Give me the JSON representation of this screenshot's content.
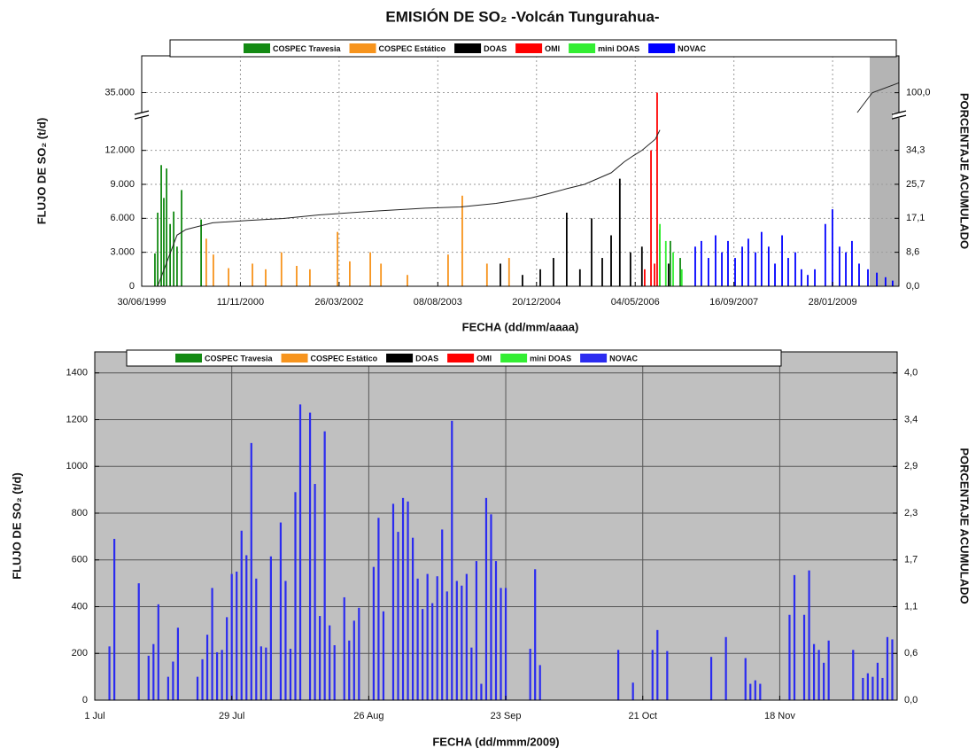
{
  "chart_data": [
    {
      "type": "bar",
      "title": "EMISIÓN DE SO₂  -Volcán Tungurahua-",
      "xlabel": "FECHA (dd/mm/aaaa)",
      "ylabel": "FLUJO DE SO₂ (t/d)",
      "y2label": "PORCENTAJE ACUMULADO",
      "xlim": [
        "1999-06-30",
        "2009-12-30"
      ],
      "xticks": [
        {
          "value": "1999-06-30",
          "label": "30/06/1999"
        },
        {
          "value": "2000-11-11",
          "label": "11/11/2000"
        },
        {
          "value": "2002-03-26",
          "label": "26/03/2002"
        },
        {
          "value": "2003-08-08",
          "label": "08/08/2003"
        },
        {
          "value": "2004-12-20",
          "label": "20/12/2004"
        },
        {
          "value": "2006-05-04",
          "label": "04/05/2006"
        },
        {
          "value": "2007-09-16",
          "label": "16/09/2007"
        },
        {
          "value": "2009-01-28",
          "label": "28/01/2009"
        }
      ],
      "ylim": [
        0,
        38250
      ],
      "ybreak": [
        15100,
        33000
      ],
      "yticks": [
        0,
        {
          "value": 3000,
          "label": "3.000"
        },
        {
          "value": 6000,
          "label": "6.000"
        },
        {
          "value": 9000,
          "label": "9.000"
        },
        {
          "value": 12000,
          "label": "12.000"
        },
        {
          "value": 35000,
          "label": "35.000"
        }
      ],
      "y2lim": [
        0,
        109.3
      ],
      "y2break": [
        43.1,
        94.3
      ],
      "y2ticks": [
        {
          "value": 0,
          "label": "0,0"
        },
        {
          "value": 8.571,
          "label": "8,6"
        },
        {
          "value": 17.143,
          "label": "17,1"
        },
        {
          "value": 25.714,
          "label": "25,7"
        },
        {
          "value": 34.286,
          "label": "34,3"
        },
        {
          "value": 100,
          "label": "100,0"
        }
      ],
      "grid": true,
      "grid_style": "dotted",
      "shaded_range": [
        "2009-08-04",
        "2009-12-30"
      ],
      "shaded_color": "#b4b4b4",
      "series": [
        {
          "name": "COSPEC Travesia",
          "color": "#138a13",
          "x": [
            "1999-09-05",
            "1999-09-19",
            "1999-10-07",
            "1999-10-20",
            "1999-11-03",
            "1999-11-21",
            "1999-12-09",
            "1999-12-26",
            "2000-01-18",
            "2000-04-26",
            "2006-09-05",
            "2006-10-29",
            "2006-12-18"
          ],
          "values": [
            2900,
            6500,
            10700,
            7800,
            10400,
            5500,
            6600,
            3500,
            8500,
            5900,
            5000,
            4000,
            2500
          ]
        },
        {
          "name": "COSPEC Estático",
          "color": "#f7941d",
          "x": [
            "2000-05-22",
            "2000-06-27",
            "2000-09-12",
            "2001-01-11",
            "2001-03-19",
            "2001-06-07",
            "2001-08-23",
            "2001-10-29",
            "2002-03-18",
            "2002-05-19",
            "2002-08-31",
            "2002-10-24",
            "2003-03-07",
            "2003-09-29",
            "2003-12-10",
            "2004-04-13",
            "2004-08-03"
          ],
          "values": [
            4200,
            2800,
            1600,
            2000,
            1500,
            3000,
            1800,
            1500,
            4800,
            2200,
            3000,
            2000,
            1000,
            2800,
            8000,
            2000,
            2500
          ]
        },
        {
          "name": "DOAS",
          "color": "#000000",
          "x": [
            "2004-06-20",
            "2004-10-10",
            "2005-01-08",
            "2005-03-16",
            "2005-05-22",
            "2005-07-28",
            "2005-09-25",
            "2005-11-18",
            "2006-01-02",
            "2006-02-15",
            "2006-04-10",
            "2006-06-07",
            "2006-10-20"
          ],
          "values": [
            2000,
            1000,
            1500,
            2500,
            6500,
            1500,
            6000,
            2500,
            4500,
            9500,
            3000,
            3500,
            2000
          ]
        },
        {
          "name": "OMI",
          "color": "#ff0000",
          "x": [
            "2006-06-21",
            "2006-07-23",
            "2006-08-10",
            "2006-08-23"
          ],
          "values": [
            1500,
            12000,
            2000,
            35000
          ]
        },
        {
          "name": "mini DOAS",
          "color": "#33ee33",
          "x": [
            "2006-09-06",
            "2006-10-06",
            "2006-11-12",
            "2006-12-26"
          ],
          "values": [
            5500,
            4000,
            3000,
            1500
          ]
        },
        {
          "name": "NOVAC",
          "color": "#0000ff",
          "x": [
            "2007-03-04",
            "2007-04-04",
            "2007-05-10",
            "2007-06-15",
            "2007-07-17",
            "2007-08-17",
            "2007-09-22",
            "2007-10-28",
            "2007-11-28",
            "2008-01-03",
            "2008-02-03",
            "2008-03-10",
            "2008-04-11",
            "2008-05-17",
            "2008-06-17",
            "2008-07-23",
            "2008-08-23",
            "2008-09-24",
            "2008-10-30",
            "2008-12-22",
            "2009-01-27",
            "2009-03-04",
            "2009-04-05",
            "2009-05-06",
            "2009-06-11",
            "2009-07-26",
            "2009-09-09",
            "2009-10-23",
            "2009-11-28"
          ],
          "values": [
            3500,
            4000,
            2500,
            4500,
            3000,
            4000,
            2500,
            3500,
            4200,
            3000,
            4800,
            3500,
            2000,
            4500,
            2500,
            3000,
            1500,
            1000,
            1500,
            5500,
            6800,
            3500,
            3000,
            4000,
            2000,
            1500,
            1200,
            800,
            500
          ]
        },
        {
          "type": "line",
          "axis": "y2",
          "color": "#222222",
          "x": [
            "1999-09-19",
            "1999-12-26",
            "2000-02-09",
            "2000-06-23",
            "2000-12-19",
            "2001-06-17",
            "2001-12-13",
            "2002-09-08",
            "2003-06-05",
            "2003-12-01",
            "2004-05-29",
            "2004-11-24",
            "2005-02-22",
            "2005-05-22",
            "2005-08-20",
            "2006-01-02",
            "2006-03-10",
            "2006-04-24",
            "2006-06-08",
            "2006-08-14",
            "2006-09-06",
            "2008-01-01",
            "2009-06-02",
            "2009-08-17",
            "2009-12-30"
          ],
          "values": [
            0,
            12.9,
            14.3,
            16.0,
            16.6,
            17.1,
            18.0,
            18.9,
            19.7,
            20.0,
            20.9,
            22.3,
            23.4,
            24.6,
            25.7,
            28.6,
            31.4,
            32.9,
            34.3,
            37.1,
            39.4,
            null,
            95.0,
            100.0,
            102.5
          ]
        }
      ]
    },
    {
      "type": "bar",
      "xlabel": "FECHA (dd/mmm/2009)",
      "ylabel": "FLUJO DE SO₂ (t/d)",
      "y2label": "PORCENTAJE ACUMULADO",
      "xlim": [
        "2009-07-01",
        "2009-12-12"
      ],
      "xticks": [
        {
          "value": "2009-07-01",
          "label": "1 Jul"
        },
        {
          "value": "2009-07-29",
          "label": "29 Jul"
        },
        {
          "value": "2009-08-26",
          "label": "26 Aug"
        },
        {
          "value": "2009-09-23",
          "label": "23 Sep"
        },
        {
          "value": "2009-10-21",
          "label": "21 Oct"
        },
        {
          "value": "2009-11-18",
          "label": "18 Nov"
        }
      ],
      "ylim": [
        0,
        1490
      ],
      "yticks": [
        0,
        200,
        400,
        600,
        800,
        1000,
        1200,
        1400
      ],
      "y2lim": [
        0,
        4.257
      ],
      "y2ticks": [
        {
          "value": 0,
          "label": "0,0"
        },
        {
          "value": 0.571,
          "label": "0,6"
        },
        {
          "value": 1.143,
          "label": "1,1"
        },
        {
          "value": 1.714,
          "label": "1,7"
        },
        {
          "value": 2.286,
          "label": "2,3"
        },
        {
          "value": 2.857,
          "label": "2,9"
        },
        {
          "value": 3.429,
          "label": "3,4"
        },
        {
          "value": 4,
          "label": "4,0"
        }
      ],
      "grid": true,
      "grid_style": "solid",
      "background": "#c0c0c0",
      "series": [
        {
          "name": "COSPEC Travesia",
          "color": "#138a13",
          "x": [],
          "values": []
        },
        {
          "name": "COSPEC Estático",
          "color": "#f7941d",
          "x": [],
          "values": []
        },
        {
          "name": "DOAS",
          "color": "#000000",
          "x": [],
          "values": []
        },
        {
          "name": "OMI",
          "color": "#ff0000",
          "x": [],
          "values": []
        },
        {
          "name": "mini DOAS",
          "color": "#33ee33",
          "x": [],
          "values": []
        },
        {
          "name": "NOVAC",
          "color": "#2b2bf0",
          "x": [
            "2009-07-04",
            "2009-07-05",
            "2009-07-10",
            "2009-07-12",
            "2009-07-13",
            "2009-07-14",
            "2009-07-16",
            "2009-07-17",
            "2009-07-18",
            "2009-07-22",
            "2009-07-23",
            "2009-07-24",
            "2009-07-25",
            "2009-07-26",
            "2009-07-27",
            "2009-07-28",
            "2009-07-29",
            "2009-07-30",
            "2009-07-31",
            "2009-08-01",
            "2009-08-02",
            "2009-08-03",
            "2009-08-04",
            "2009-08-05",
            "2009-08-06",
            "2009-08-08",
            "2009-08-09",
            "2009-08-10",
            "2009-08-11",
            "2009-08-12",
            "2009-08-14",
            "2009-08-15",
            "2009-08-16",
            "2009-08-17",
            "2009-08-18",
            "2009-08-19",
            "2009-08-21",
            "2009-08-22",
            "2009-08-23",
            "2009-08-24",
            "2009-08-27",
            "2009-08-28",
            "2009-08-29",
            "2009-08-31",
            "2009-09-01",
            "2009-09-02",
            "2009-09-03",
            "2009-09-04",
            "2009-09-05",
            "2009-09-06",
            "2009-09-07",
            "2009-09-08",
            "2009-09-09",
            "2009-09-10",
            "2009-09-11",
            "2009-09-12",
            "2009-09-13",
            "2009-09-14",
            "2009-09-15",
            "2009-09-16",
            "2009-09-17",
            "2009-09-18",
            "2009-09-19",
            "2009-09-20",
            "2009-09-21",
            "2009-09-22",
            "2009-09-23",
            "2009-09-28",
            "2009-09-29",
            "2009-09-30",
            "2009-10-16",
            "2009-10-19",
            "2009-10-23",
            "2009-10-24",
            "2009-10-26",
            "2009-11-04",
            "2009-11-07",
            "2009-11-11",
            "2009-11-12",
            "2009-11-13",
            "2009-11-14",
            "2009-11-20",
            "2009-11-21",
            "2009-11-23",
            "2009-11-24",
            "2009-11-25",
            "2009-11-26",
            "2009-11-27",
            "2009-11-28",
            "2009-12-03",
            "2009-12-05",
            "2009-12-06",
            "2009-12-07",
            "2009-12-08",
            "2009-12-09",
            "2009-12-10",
            "2009-12-11"
          ],
          "values": [
            230,
            690,
            500,
            190,
            240,
            410,
            100,
            165,
            310,
            100,
            175,
            280,
            480,
            205,
            215,
            355,
            540,
            550,
            725,
            620,
            1100,
            520,
            230,
            225,
            615,
            760,
            510,
            220,
            890,
            1265,
            1230,
            925,
            360,
            1150,
            320,
            235,
            440,
            255,
            340,
            395,
            570,
            780,
            380,
            840,
            720,
            865,
            850,
            695,
            520,
            390,
            540,
            415,
            530,
            730,
            465,
            1195,
            510,
            490,
            540,
            225,
            595,
            70,
            865,
            795,
            595,
            480,
            480,
            220,
            560,
            150,
            215,
            75,
            215,
            300,
            210,
            185,
            270,
            180,
            70,
            85,
            70,
            365,
            535,
            365,
            555,
            240,
            215,
            160,
            255,
            215,
            95,
            115,
            100,
            160,
            95,
            270,
            260
          ]
        }
      ]
    }
  ]
}
